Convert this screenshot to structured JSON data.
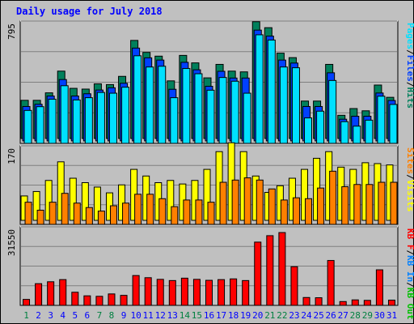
{
  "title": "Daily usage for July 2018",
  "colors": {
    "background": "#c0c0c0",
    "panel": "#c0c0c0",
    "grid": "#808080",
    "title": "#0000ff",
    "weekday": "#0000ff",
    "weekend": "#008040",
    "hits": "#00805c",
    "files": "#0040ff",
    "pages": "#00e0ff",
    "visits": "#ffff00",
    "sites": "#ff8000",
    "kbf": "#ff0000",
    "kbin": "#0080ff",
    "kbout": "#00c000",
    "separator": "#000000"
  },
  "chart_data": [
    {
      "type": "bar",
      "panel": "hits-files-pages",
      "ymax_label": "795",
      "ylim": [
        0,
        795
      ],
      "grid": true,
      "legend": [
        {
          "label": "Pages",
          "color_key": "pages"
        },
        {
          "label": "Files",
          "color_key": "files"
        },
        {
          "label": "Hits",
          "color_key": "hits"
        }
      ],
      "legend_separator": "/",
      "x": [
        1,
        2,
        3,
        4,
        5,
        6,
        7,
        8,
        9,
        10,
        11,
        12,
        13,
        14,
        15,
        16,
        17,
        18,
        19,
        20,
        21,
        22,
        23,
        24,
        25,
        26,
        27,
        28,
        29,
        30,
        31
      ],
      "series": [
        {
          "name": "Hits",
          "color_key": "hits",
          "values": [
            255,
            255,
            305,
            450,
            335,
            330,
            365,
            360,
            415,
            655,
            575,
            550,
            385,
            555,
            505,
            405,
            495,
            450,
            445,
            780,
            740,
            570,
            540,
            250,
            250,
            495,
            155,
            200,
            185,
            357,
            275
          ]
        },
        {
          "name": "Files",
          "color_key": "files",
          "values": [
            230,
            245,
            300,
            410,
            300,
            315,
            340,
            355,
            385,
            620,
            555,
            540,
            345,
            525,
            475,
            365,
            465,
            420,
            420,
            740,
            700,
            540,
            520,
            230,
            230,
            455,
            145,
            165,
            165,
            320,
            270
          ]
        },
        {
          "name": "Pages",
          "color_key": "pages",
          "values": [
            220,
            245,
            295,
            385,
            290,
            305,
            340,
            335,
            375,
            585,
            510,
            515,
            305,
            500,
            465,
            355,
            440,
            415,
            335,
            725,
            690,
            510,
            505,
            170,
            215,
            420,
            145,
            115,
            155,
            315,
            260
          ]
        }
      ]
    },
    {
      "type": "bar",
      "panel": "visits-sites",
      "ymax_label": "170",
      "ylim": [
        0,
        170
      ],
      "grid": true,
      "legend": [
        {
          "label": "Sites",
          "color_key": "sites"
        },
        {
          "label": "Visits",
          "color_key": "visits"
        }
      ],
      "legend_separator": "/",
      "x": [
        1,
        2,
        3,
        4,
        5,
        6,
        7,
        8,
        9,
        10,
        11,
        12,
        13,
        14,
        15,
        16,
        17,
        18,
        19,
        20,
        21,
        22,
        23,
        24,
        25,
        26,
        27,
        28,
        29,
        30,
        31
      ],
      "series": [
        {
          "name": "Visits",
          "color_key": "visits",
          "values": [
            55,
            65,
            90,
            132,
            95,
            85,
            75,
            62,
            80,
            115,
            100,
            85,
            90,
            82,
            90,
            115,
            155,
            175,
            155,
            100,
            63,
            78,
            95,
            115,
            140,
            155,
            120,
            115,
            130,
            128,
            125
          ]
        },
        {
          "name": "Sites",
          "color_key": "sites",
          "values": [
            50,
            32,
            50,
            70,
            48,
            38,
            30,
            42,
            48,
            68,
            68,
            58,
            40,
            55,
            55,
            50,
            95,
            100,
            105,
            100,
            80,
            55,
            60,
            58,
            82,
            120,
            85,
            90,
            90,
            95,
            95
          ]
        }
      ]
    },
    {
      "type": "bar",
      "panel": "kbf-kbin-kbout",
      "ymax_label": "31550",
      "ylim": [
        0,
        31550
      ],
      "grid": true,
      "legend": [
        {
          "label": "KB F",
          "color_key": "kbf"
        },
        {
          "label": "KB In",
          "color_key": "kbin"
        },
        {
          "label": "KB Out",
          "color_key": "kbout"
        }
      ],
      "legend_separator": "/",
      "x": [
        1,
        2,
        3,
        4,
        5,
        6,
        7,
        8,
        9,
        10,
        11,
        12,
        13,
        14,
        15,
        16,
        17,
        18,
        19,
        20,
        21,
        22,
        23,
        24,
        25,
        26,
        27,
        28,
        29,
        30,
        31
      ],
      "series": [
        {
          "name": "KB F",
          "color_key": "kbf",
          "values": [
            2500,
            9100,
            9900,
            10800,
            5500,
            4000,
            3800,
            4800,
            4200,
            12500,
            11600,
            10900,
            10400,
            11400,
            10900,
            10500,
            10800,
            11100,
            10400,
            26500,
            29200,
            30500,
            16200,
            3300,
            3200,
            18800,
            1600,
            2300,
            2100,
            14900,
            2200
          ]
        }
      ]
    }
  ],
  "days": [
    {
      "label": "1",
      "weekend": true
    },
    {
      "label": "2",
      "weekend": false
    },
    {
      "label": "3",
      "weekend": false
    },
    {
      "label": "4",
      "weekend": false
    },
    {
      "label": "5",
      "weekend": false
    },
    {
      "label": "6",
      "weekend": false
    },
    {
      "label": "7",
      "weekend": true
    },
    {
      "label": "8",
      "weekend": true
    },
    {
      "label": "9",
      "weekend": false
    },
    {
      "label": "10",
      "weekend": false
    },
    {
      "label": "11",
      "weekend": false
    },
    {
      "label": "12",
      "weekend": false
    },
    {
      "label": "13",
      "weekend": false
    },
    {
      "label": "14",
      "weekend": true
    },
    {
      "label": "15",
      "weekend": true
    },
    {
      "label": "16",
      "weekend": false
    },
    {
      "label": "17",
      "weekend": false
    },
    {
      "label": "18",
      "weekend": false
    },
    {
      "label": "19",
      "weekend": false
    },
    {
      "label": "20",
      "weekend": false
    },
    {
      "label": "21",
      "weekend": true
    },
    {
      "label": "22",
      "weekend": true
    },
    {
      "label": "23",
      "weekend": false
    },
    {
      "label": "24",
      "weekend": false
    },
    {
      "label": "25",
      "weekend": false
    },
    {
      "label": "26",
      "weekend": false
    },
    {
      "label": "27",
      "weekend": false
    },
    {
      "label": "28",
      "weekend": true
    },
    {
      "label": "29",
      "weekend": true
    },
    {
      "label": "30",
      "weekend": false
    },
    {
      "label": "31",
      "weekend": false
    }
  ]
}
